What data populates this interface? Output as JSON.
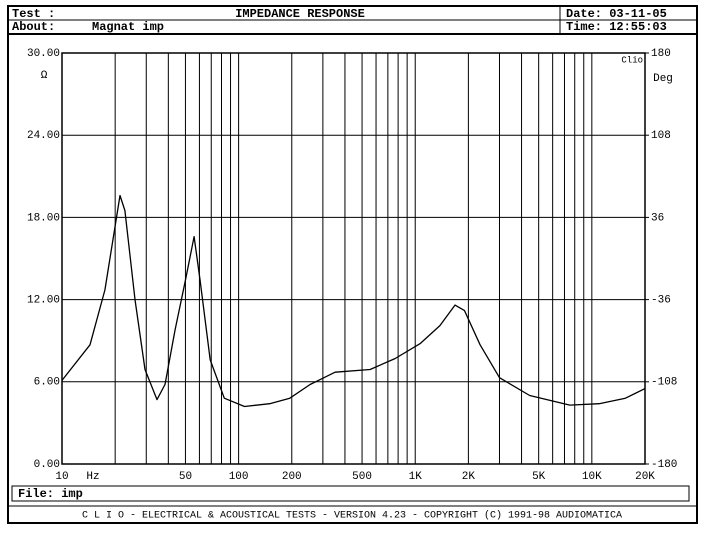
{
  "header": {
    "test": "Test :",
    "about": "About:",
    "about_value": "Magnat imp",
    "title": "IMPEDANCE RESPONSE",
    "date": "Date: 03-11-05",
    "time": "Time: 12:55:03"
  },
  "footer": {
    "file": "File: imp",
    "banner": "C L I O  -  ELECTRICAL & ACOUSTICAL TESTS  -  VERSION 4.23  -  COPYRIGHT (C) 1991-98 AUDIOMATICA"
  },
  "chart_data": {
    "type": "line",
    "x_scale": "log",
    "grid": true,
    "color": "#000000",
    "y_unit": "Ω",
    "y2_unit": "Deg",
    "x_unit": "Hz",
    "brand": "Clio",
    "xlim": [
      10,
      20000
    ],
    "ylim": [
      0,
      30
    ],
    "y2lim": [
      -180,
      180
    ],
    "xticks": [
      10,
      50,
      100,
      200,
      500,
      {
        "value": 1000,
        "label": "1K"
      },
      {
        "value": 2000,
        "label": "2K"
      },
      {
        "value": 5000,
        "label": "5K"
      },
      {
        "value": 10000,
        "label": "10K"
      },
      {
        "value": 20000,
        "label": "20K"
      }
    ],
    "x_minor_grid": [
      20,
      30,
      40,
      60,
      70,
      80,
      90,
      300,
      400,
      600,
      700,
      800,
      900,
      3000,
      4000,
      6000,
      7000,
      8000,
      9000
    ],
    "yticks": [
      {
        "value": 0,
        "label": "0.00"
      },
      {
        "value": 6,
        "label": "6.00"
      },
      {
        "value": 12,
        "label": "12.00"
      },
      {
        "value": 18,
        "label": "18.00"
      },
      {
        "value": 24,
        "label": "24.00"
      },
      {
        "value": 30,
        "label": "30.00"
      }
    ],
    "y2ticks": [
      -180,
      -108,
      -36,
      36,
      108,
      180
    ],
    "x": [
      10,
      14.4,
      17.5,
      20,
      21.3,
      22.7,
      25.9,
      29.5,
      34.5,
      38.3,
      43.7,
      50,
      56,
      60.5,
      69,
      83,
      108,
      150,
      195,
      254,
      352,
      555,
      770,
      1070,
      1380,
      1680,
      1900,
      2330,
      3000,
      4450,
      7500,
      11000,
      15500,
      20000
    ],
    "series": [
      {
        "name": "Impedance",
        "values": [
          6.1,
          8.7,
          12.7,
          17.4,
          19.6,
          18.5,
          12,
          6.9,
          4.7,
          5.8,
          9.8,
          13.4,
          16.6,
          13.4,
          7.6,
          4.8,
          4.2,
          4.4,
          4.8,
          5.8,
          6.7,
          6.9,
          7.7,
          8.8,
          10.1,
          11.6,
          11.2,
          8.7,
          6.3,
          5.0,
          4.3,
          4.4,
          4.8,
          5.5
        ]
      }
    ]
  }
}
